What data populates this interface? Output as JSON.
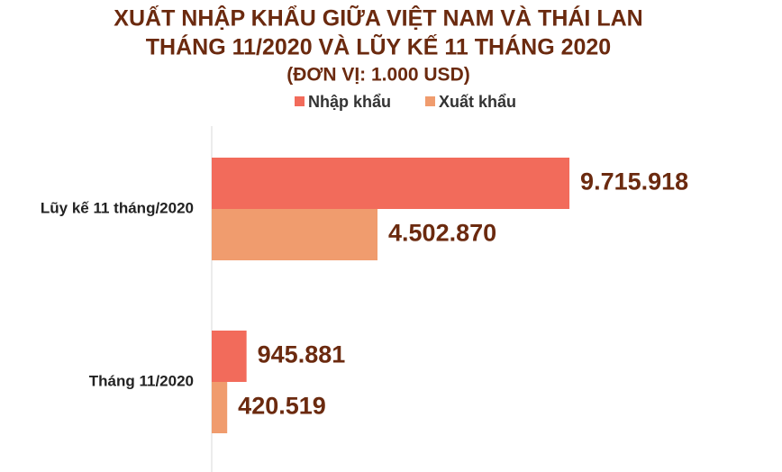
{
  "chart_data": {
    "type": "hbar",
    "title": "XUẤT NHẬP KHẨU GIỮA VIỆT NAM VÀ THÁI LAN",
    "subtitle": "THÁNG 11/2020 VÀ LŨY KẾ 11 THÁNG 2020",
    "unit": "(ĐƠN VỊ: 1.000 USD)",
    "categories": [
      "Lũy kế 11 tháng/2020",
      "Tháng 11/2020"
    ],
    "series": [
      {
        "name": "Nhập khẩu",
        "color": "#f26b5b",
        "values": [
          9715918,
          945881
        ],
        "value_labels": [
          "9.715.918",
          "945.881"
        ]
      },
      {
        "name": "Xuất khẩu",
        "color": "#f09c6e",
        "values": [
          4502870,
          420519
        ],
        "value_labels": [
          "4.502.870",
          "420.519"
        ]
      }
    ],
    "xlim": [
      0,
      15000000
    ],
    "legend": "top"
  }
}
